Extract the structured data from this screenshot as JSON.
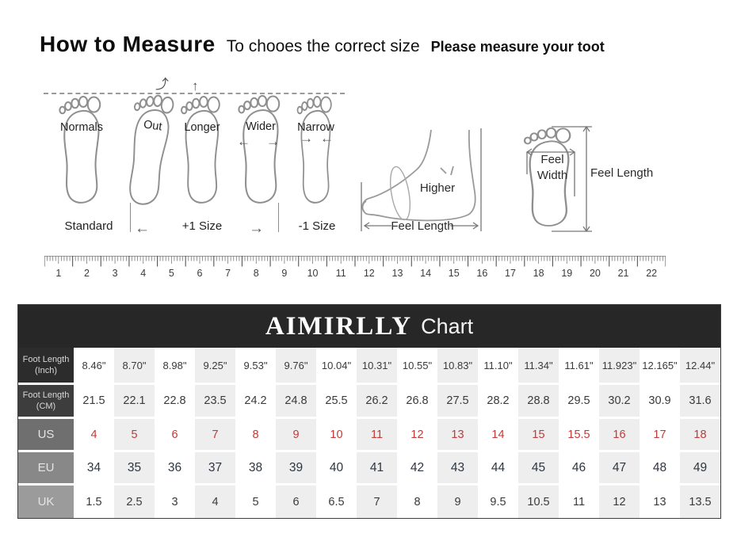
{
  "header": {
    "title": "How to Measure",
    "subtitle": "To chooes the correct size",
    "note": "Please measure your toot"
  },
  "diagram": {
    "feet": [
      {
        "label": "Normals"
      },
      {
        "label": "Out"
      },
      {
        "label": "Longer"
      },
      {
        "label": "Wider"
      },
      {
        "label": "Narrow"
      }
    ],
    "bottom_captions": [
      "Standard",
      "+1 Size",
      "-1 Size"
    ],
    "side_view": {
      "higher_label": "Higher",
      "length_label": "Feel Length"
    },
    "top_view": {
      "width_label_line1": "Feel",
      "width_label_line2": "Width",
      "length_label": "Feel Length"
    }
  },
  "icons": {
    "arrow_left": "←",
    "arrow_right": "→",
    "arrow_up": "↑",
    "arrow_curve_out": "⤴"
  },
  "ruler": {
    "numbers": [
      "1",
      "2",
      "3",
      "4",
      "5",
      "6",
      "7",
      "8",
      "9",
      "10",
      "11",
      "12",
      "13",
      "14",
      "15",
      "16",
      "17",
      "18",
      "19",
      "20",
      "21",
      "22"
    ]
  },
  "chart": {
    "brand": "AIMIRLLY",
    "title_suffix": "Chart"
  },
  "chart_data": {
    "type": "table",
    "title": "AIMIRLLY Chart",
    "rows": [
      {
        "key": "foot-length-inch",
        "header": "Foot Length (Inch)",
        "header_lines": [
          "Foot Length",
          "(Inch)"
        ],
        "values": [
          "8.46\"",
          "8.70\"",
          "8.98\"",
          "9.25\"",
          "9.53\"",
          "9.76\"",
          "10.04\"",
          "10.31\"",
          "10.55\"",
          "10.83\"",
          "11.10\"",
          "11.34\"",
          "11.61\"",
          "11.923\"",
          "12.165\"",
          "12.44\""
        ]
      },
      {
        "key": "foot-length-cm",
        "header": "Foot Length (CM)",
        "header_lines": [
          "Foot Length",
          "(CM)"
        ],
        "values": [
          "21.5",
          "22.1",
          "22.8",
          "23.5",
          "24.2",
          "24.8",
          "25.5",
          "26.2",
          "26.8",
          "27.5",
          "28.2",
          "28.8",
          "29.5",
          "30.2",
          "30.9",
          "31.6"
        ]
      },
      {
        "key": "us",
        "header": "US",
        "header_lines": [
          "US"
        ],
        "values": [
          "4",
          "5",
          "6",
          "7",
          "8",
          "9",
          "10",
          "11",
          "12",
          "13",
          "14",
          "15",
          "15.5",
          "16",
          "17",
          "18"
        ]
      },
      {
        "key": "eu",
        "header": "EU",
        "header_lines": [
          "EU"
        ],
        "values": [
          "34",
          "35",
          "36",
          "37",
          "38",
          "39",
          "40",
          "41",
          "42",
          "43",
          "44",
          "45",
          "46",
          "47",
          "48",
          "49"
        ]
      },
      {
        "key": "uk",
        "header": "UK",
        "header_lines": [
          "UK"
        ],
        "values": [
          "1.5",
          "2.5",
          "3",
          "4",
          "5",
          "6",
          "6.5",
          "7",
          "8",
          "9",
          "9.5",
          "10.5",
          "11",
          "12",
          "13",
          "13.5"
        ]
      }
    ]
  },
  "colors": {
    "table_bar": "#272727",
    "us_value_red": "#c03a3a",
    "column_stripe": "#eeeeee",
    "header_cell_shades": [
      "#2c2c2c",
      "#3d3d3d",
      "#6f6f6f",
      "#888888",
      "#9b9b9b"
    ],
    "outline_gray": "#8f8f8f"
  }
}
